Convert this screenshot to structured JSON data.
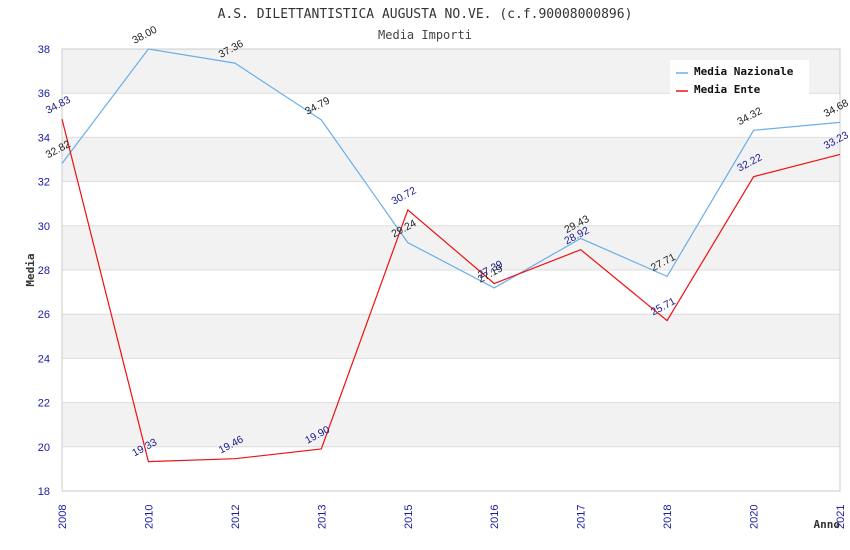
{
  "page": {
    "title": "A.S. DILETTANTISTICA AUGUSTA NO.VE. (c.f.90008000896)",
    "subtitle": "Media Importi"
  },
  "chart_data": {
    "type": "line",
    "title": "A.S. DILETTANTISTICA AUGUSTA NO.VE. (c.f.90008000896)",
    "subtitle": "Media Importi",
    "xlabel": "Anno",
    "ylabel": "Media",
    "categories": [
      "2008",
      "2010",
      "2012",
      "2013",
      "2015",
      "2016",
      "2017",
      "2018",
      "2020",
      "2021"
    ],
    "ylim": [
      18,
      38
    ],
    "yticks": [
      "18",
      "20",
      "22",
      "24",
      "26",
      "28",
      "30",
      "32",
      "34",
      "36",
      "38"
    ],
    "grid": "horizontal bands",
    "legend_position": "top-right",
    "series": [
      {
        "name": "Media Nazionale",
        "color": "#6aaee8",
        "values": [
          32.82,
          38.0,
          37.36,
          34.79,
          29.24,
          27.19,
          29.43,
          27.71,
          34.32,
          34.68
        ],
        "labels": [
          "32.82",
          "38.00",
          "37.36",
          "34.79",
          "29.24",
          "27.19",
          "29.43",
          "27.71",
          "34.32",
          "34.68"
        ]
      },
      {
        "name": "Media Ente",
        "color": "#ee1111",
        "values": [
          34.83,
          19.33,
          19.46,
          19.9,
          30.72,
          27.39,
          28.92,
          25.71,
          32.22,
          33.23
        ],
        "labels": [
          "34.83",
          "19.33",
          "19.46",
          "19.90",
          "30.72",
          "27.39",
          "28.92",
          "25.71",
          "32.22",
          "33.23"
        ]
      }
    ]
  }
}
